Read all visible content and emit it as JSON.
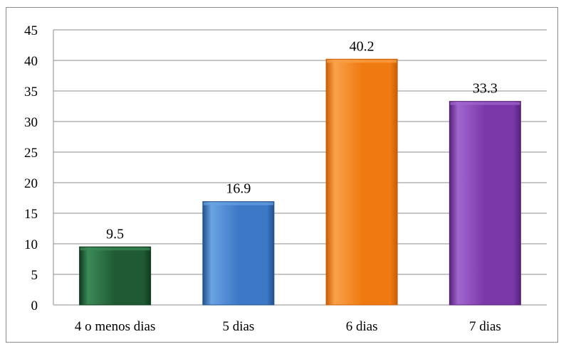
{
  "chart_data": {
    "type": "bar",
    "title": "",
    "xlabel": "",
    "ylabel": "",
    "categories": [
      "4 o menos dias",
      "5 dias",
      "6 dias",
      "7 dias"
    ],
    "values": [
      9.5,
      16.9,
      40.2,
      33.3
    ],
    "data_labels": [
      "9.5",
      "16.9",
      "40.2",
      "33.3"
    ],
    "ylim": [
      0,
      45
    ],
    "yticks": [
      0,
      5,
      10,
      15,
      20,
      25,
      30,
      35,
      40,
      45
    ],
    "grid": true,
    "legend": "none",
    "colors": {
      "bars": [
        "#1f5a34",
        "#3d78c6",
        "#f07a12",
        "#7a38a8"
      ],
      "bars_light": [
        "#3c8a58",
        "#6aa2e2",
        "#f8a24a",
        "#a266cf"
      ],
      "bars_dark": [
        "#103a20",
        "#23508e",
        "#c95e06",
        "#55227a"
      ],
      "gridline": "#8c8c8c",
      "axis": "#8c8c8c"
    }
  }
}
